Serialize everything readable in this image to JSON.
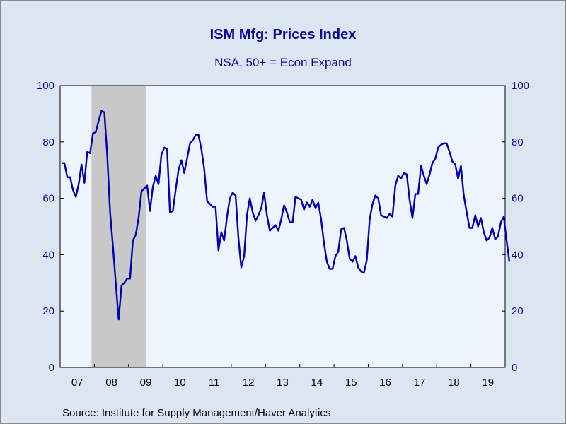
{
  "title": "ISM Mfg: Prices Index",
  "subtitle": "NSA, 50+ = Econ Expand",
  "source": "Source:  Institute for Supply Management/Haver Analytics",
  "colors": {
    "line": "#0000b4",
    "plot_bg": "#eef4fd",
    "recession": "#c8c8c8",
    "text": "#0a0a96"
  },
  "chart_data": {
    "type": "line",
    "x_start": "2007-01",
    "x_end": "2019-12",
    "ylim": [
      0,
      100
    ],
    "y_ticks": [
      0,
      20,
      40,
      60,
      80,
      100
    ],
    "y_tick_labels": [
      "0",
      "20",
      "40",
      "60",
      "80",
      "100"
    ],
    "x_labels": [
      "07",
      "08",
      "09",
      "10",
      "11",
      "12",
      "13",
      "14",
      "15",
      "16",
      "17",
      "18",
      "19"
    ],
    "recession": {
      "start": "2007-12",
      "end": "2009-06"
    },
    "grid": false,
    "series": [
      {
        "values": [
          72.5,
          72.5,
          67.5,
          67.5,
          63.0,
          60.5,
          65.0,
          72.0,
          65.5,
          76.5,
          76.0,
          83.0,
          83.5,
          87.5,
          91.0,
          90.5,
          75.5,
          55.0,
          43.0,
          30.0,
          17.0,
          29.0,
          30.0,
          31.5,
          31.5,
          45.0,
          47.0,
          53.0,
          62.5,
          63.5,
          64.5,
          55.5,
          64.0,
          68.0,
          65.0,
          75.5,
          78.0,
          77.5,
          55.0,
          55.5,
          63.0,
          70.0,
          73.5,
          69.0,
          74.0,
          79.5,
          80.5,
          82.5,
          82.5,
          77.5,
          70.5,
          59.0,
          58.0,
          57.0,
          57.0,
          41.5,
          48.0,
          45.0,
          53.5,
          60.0,
          62.0,
          61.0,
          46.0,
          35.5,
          39.5,
          54.0,
          60.0,
          55.0,
          52.0,
          54.0,
          56.5,
          62.0,
          54.0,
          48.5,
          49.5,
          50.5,
          48.5,
          52.5,
          57.5,
          55.0,
          51.5,
          51.5,
          60.5,
          60.0,
          59.5,
          56.0,
          58.5,
          57.0,
          59.5,
          56.5,
          58.5,
          52.5,
          44.0,
          37.5,
          35.0,
          35.0,
          39.5,
          41.0,
          49.0,
          49.5,
          45.0,
          38.5,
          37.5,
          39.5,
          35.5,
          34.0,
          33.5,
          38.0,
          52.5,
          58.0,
          61.0,
          60.0,
          54.0,
          53.5,
          53.0,
          54.5,
          53.5,
          64.5,
          68.0,
          67.0,
          69.0,
          68.5,
          59.5,
          53.0,
          61.5,
          61.5,
          71.5,
          68.0,
          65.0,
          68.5,
          72.5,
          74.0,
          78.0,
          79.0,
          79.5,
          79.5,
          76.5,
          73.0,
          72.0,
          67.0,
          71.5,
          61.0,
          55.0,
          49.5,
          49.5,
          54.0,
          50.0,
          53.0,
          48.0,
          45.0,
          46.0,
          49.5,
          45.5,
          46.5,
          51.5,
          53.5,
          45.0,
          37.5
        ]
      }
    ]
  }
}
